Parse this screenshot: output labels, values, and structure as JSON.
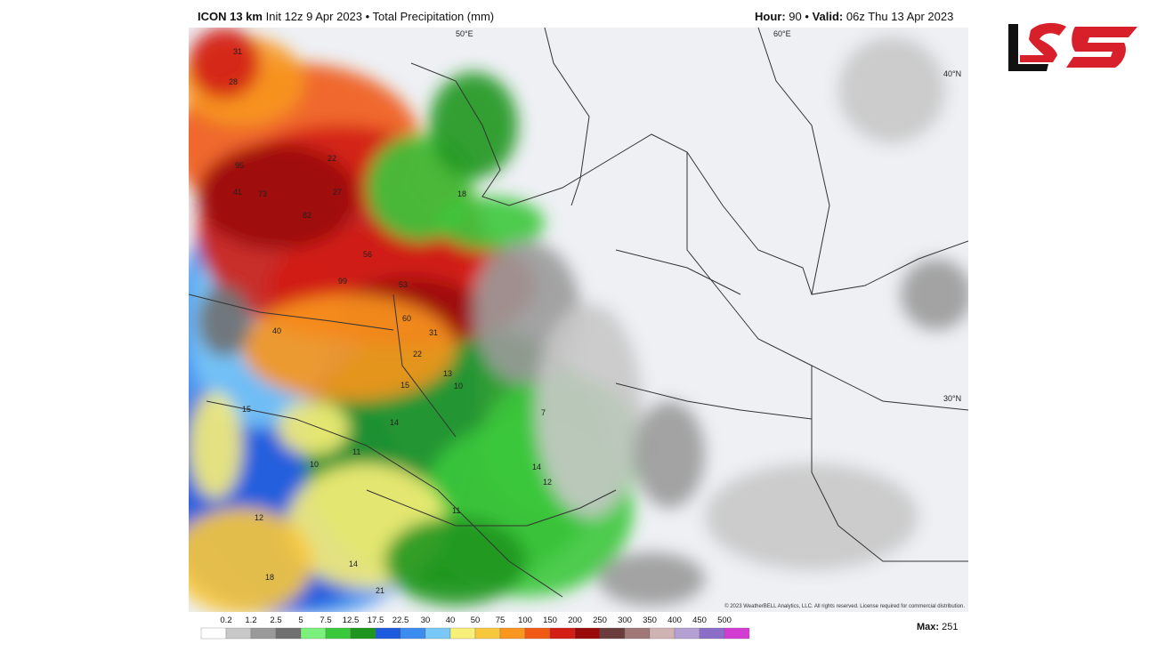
{
  "header": {
    "model": "ICON 13 km",
    "info": "Init 12z 9 Apr 2023 • Total Precipitation (mm)",
    "hour_label": "Hour:",
    "hour": "90",
    "separator": "•",
    "valid_label": "Valid:",
    "valid": "06z Thu 13 Apr 2023"
  },
  "map": {
    "grid_labels": [
      "50°E",
      "60°E",
      "40°N",
      "30°N"
    ],
    "values": [
      "31",
      "28",
      "95",
      "41",
      "73",
      "82",
      "22",
      "27",
      "18",
      "99",
      "56",
      "53",
      "60",
      "31",
      "40",
      "22",
      "13",
      "10",
      "15",
      "15",
      "14",
      "11",
      "10",
      "12",
      "14",
      "12",
      "11",
      "14",
      "21",
      "18",
      "7"
    ],
    "copyright": "© 2023 WeatherBELL Analytics, LLC. All rights reserved. License required for commercial distribution."
  },
  "legend": {
    "labels": [
      0.2,
      1.2,
      2.5,
      5,
      7.5,
      12.5,
      17.5,
      22.5,
      30,
      40,
      50,
      75,
      100,
      150,
      200,
      250,
      300,
      350,
      400,
      450,
      500
    ],
    "colors": [
      "#ffffff",
      "#c8c8c8",
      "#9a9a9a",
      "#707070",
      "#7cf07c",
      "#3cc83c",
      "#1e961e",
      "#1e5adc",
      "#3c8cf0",
      "#78c8f8",
      "#f8f078",
      "#f8c83c",
      "#f8961e",
      "#f05a14",
      "#d21e14",
      "#9a0a0a",
      "#6a3c3c",
      "#a07878",
      "#d0b4b4",
      "#b4a0d2",
      "#8c6ec8",
      "#d23cd2"
    ],
    "max_label": "Max:",
    "max": "251"
  }
}
